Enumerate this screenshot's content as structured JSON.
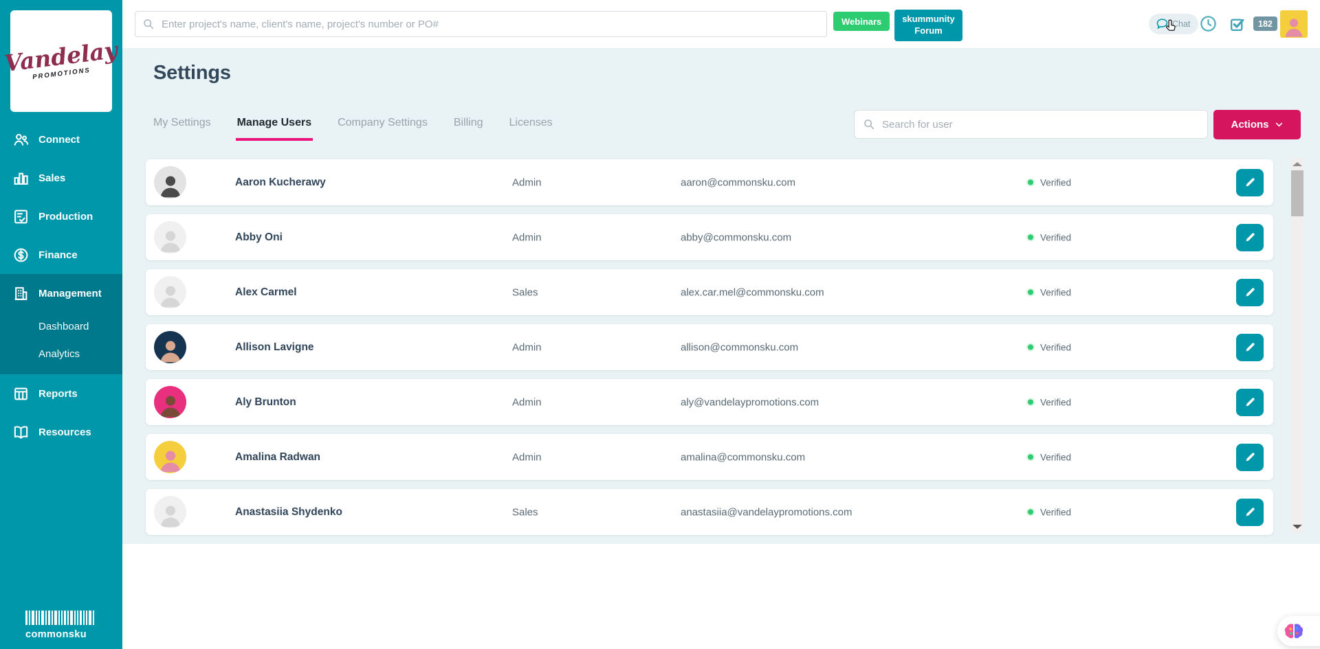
{
  "brand": {
    "logo_line1": "Vandelay",
    "logo_line2": "PROMOTIONS",
    "footer_logo": "commonsku"
  },
  "sidebar": {
    "items": [
      {
        "label": "Connect",
        "icon": "people",
        "active": false
      },
      {
        "label": "Sales",
        "icon": "bar-chart",
        "active": false
      },
      {
        "label": "Production",
        "icon": "clipboard-check",
        "active": false
      },
      {
        "label": "Finance",
        "icon": "dollar-circle",
        "active": false
      },
      {
        "label": "Management",
        "icon": "building",
        "active": true,
        "children": [
          "Dashboard",
          "Analytics"
        ]
      },
      {
        "label": "Reports",
        "icon": "report-table",
        "active": false
      },
      {
        "label": "Resources",
        "icon": "book",
        "active": false
      }
    ]
  },
  "topbar": {
    "search_placeholder": "Enter project's name, client's name, project's number or PO#",
    "webinars_label": "Webinars",
    "forum_label": "skummunity Forum",
    "chat_label": "Chat",
    "notification_count": "182"
  },
  "page": {
    "title": "Settings",
    "tabs": [
      {
        "label": "My Settings",
        "active": false
      },
      {
        "label": "Manage Users",
        "active": true
      },
      {
        "label": "Company Settings",
        "active": false
      },
      {
        "label": "Billing",
        "active": false
      },
      {
        "label": "Licenses",
        "active": false
      }
    ],
    "user_search_placeholder": "Search for user",
    "actions_label": "Actions"
  },
  "users": [
    {
      "name": "Aaron Kucherawy",
      "role": "Admin",
      "email": "aaron@commonsku.com",
      "status": "Verified",
      "avatar": {
        "kind": "photo",
        "bg": "#e3e3e3",
        "fg": "#4a4a4a"
      }
    },
    {
      "name": "Abby Oni",
      "role": "Admin",
      "email": "abby@commonsku.com",
      "status": "Verified",
      "avatar": {
        "kind": "placeholder",
        "bg": "#f0f0f0",
        "fg": "#d6d6d6"
      }
    },
    {
      "name": "Alex Carmel",
      "role": "Sales",
      "email": "alex.car.mel@commonsku.com",
      "status": "Verified",
      "avatar": {
        "kind": "placeholder",
        "bg": "#f0f0f0",
        "fg": "#d6d6d6"
      }
    },
    {
      "name": "Allison Lavigne",
      "role": "Admin",
      "email": "allison@commonsku.com",
      "status": "Verified",
      "avatar": {
        "kind": "photo",
        "bg": "#16344f",
        "fg": "#d9a68e"
      }
    },
    {
      "name": "Aly Brunton",
      "role": "Admin",
      "email": "aly@vandelaypromotions.com",
      "status": "Verified",
      "avatar": {
        "kind": "photo",
        "bg": "#e8307f",
        "fg": "#7a4a38"
      }
    },
    {
      "name": "Amalina Radwan",
      "role": "Admin",
      "email": "amalina@commonsku.com",
      "status": "Verified",
      "avatar": {
        "kind": "photo",
        "bg": "#f5ce3e",
        "fg": "#e58ca6"
      }
    },
    {
      "name": "Anastasiia Shydenko",
      "role": "Sales",
      "email": "anastasiia@vandelaypromotions.com",
      "status": "Verified",
      "avatar": {
        "kind": "placeholder",
        "bg": "#f0f0f0",
        "fg": "#d6d6d6"
      }
    }
  ],
  "header_avatar": {
    "kind": "photo",
    "bg": "#f5ce3e",
    "fg": "#e58ca6"
  },
  "colors": {
    "sidebar_teal": "#0097ab",
    "sidebar_active_teal": "#00798d",
    "content_bg": "#e9f2f4",
    "tab_underline_pink": "#ea137e",
    "actions_crimson": "#d5155e",
    "webinars_green": "#2ecc71",
    "verified_green": "#2ecc71",
    "edit_button_teal": "#0097ab",
    "notification_badge": "#7295a4"
  }
}
